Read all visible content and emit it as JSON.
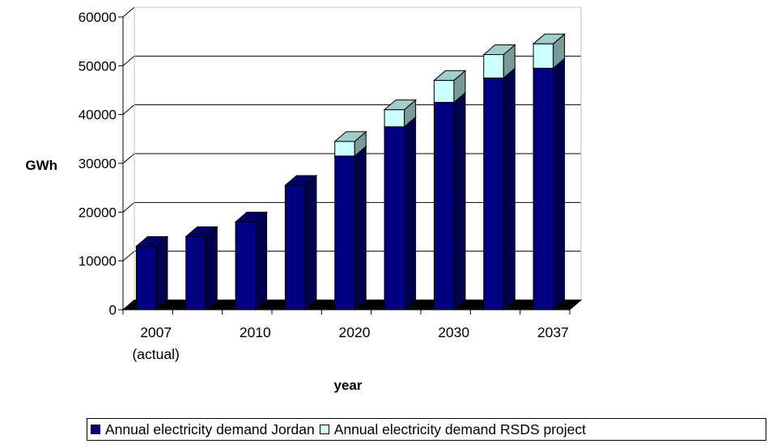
{
  "chart_data": {
    "type": "bar",
    "stacked": true,
    "three_d": true,
    "categories": [
      "2007 (actual)",
      "",
      "2010",
      "",
      "2020",
      "",
      "2030",
      "",
      "2037"
    ],
    "x_tick_labels": [
      {
        "line1": "2007",
        "line2": "(actual)"
      },
      {
        "line1": "2010",
        "line2": ""
      },
      {
        "line1": "2020",
        "line2": ""
      },
      {
        "line1": "2030",
        "line2": ""
      },
      {
        "line1": "2037",
        "line2": ""
      }
    ],
    "series": [
      {
        "name": "Annual electricity demand Jordan",
        "color": "#000080",
        "values": [
          13000,
          15000,
          18000,
          25500,
          31500,
          37500,
          42500,
          47500,
          49500
        ]
      },
      {
        "name": "Annual electricity demand RSDS project",
        "color": "#ccffff",
        "values": [
          0,
          0,
          0,
          0,
          3000,
          3500,
          4500,
          4800,
          5000
        ]
      }
    ],
    "ylabel": "GWh",
    "xlabel": "year",
    "ylim": [
      0,
      60000
    ],
    "y_ticks": [
      "0",
      "10000",
      "20000",
      "30000",
      "40000",
      "50000",
      "60000"
    ],
    "grid": true,
    "legend_position": "bottom"
  }
}
